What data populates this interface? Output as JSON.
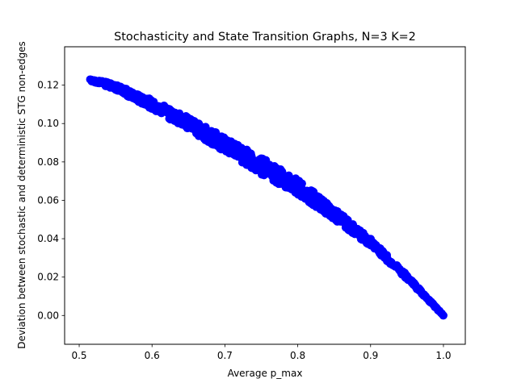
{
  "chart_data": {
    "type": "scatter",
    "title": "Stochasticity and State Transition Graphs, N=3 K=2",
    "xlabel": "Average p_max",
    "ylabel": "Deviation between stochastic and deterministic STG non-edges",
    "xlim": [
      0.48,
      1.03
    ],
    "ylim": [
      -0.015,
      0.14
    ],
    "xticks": [
      0.5,
      0.6,
      0.7,
      0.8,
      0.9,
      1.0
    ],
    "xtick_labels": [
      "0.5",
      "0.6",
      "0.7",
      "0.8",
      "0.9",
      "1.0"
    ],
    "yticks": [
      0.0,
      0.02,
      0.04,
      0.06,
      0.08,
      0.1,
      0.12
    ],
    "ytick_labels": [
      "0.00",
      "0.02",
      "0.04",
      "0.06",
      "0.08",
      "0.10",
      "0.12"
    ],
    "grid": false,
    "marker_color": "#0000ff",
    "series": [
      {
        "band_center": [
          [
            0.515,
            0.123
          ],
          [
            0.55,
            0.119
          ],
          [
            0.6,
            0.11
          ],
          [
            0.65,
            0.1
          ],
          [
            0.7,
            0.089
          ],
          [
            0.75,
            0.078
          ],
          [
            0.8,
            0.067
          ],
          [
            0.85,
            0.053
          ],
          [
            0.9,
            0.038
          ],
          [
            0.95,
            0.02
          ],
          [
            1.0,
            0.0
          ]
        ],
        "band_spread": [
          [
            0.515,
            0.0008
          ],
          [
            0.6,
            0.0025
          ],
          [
            0.7,
            0.004
          ],
          [
            0.75,
            0.0045
          ],
          [
            0.8,
            0.004
          ],
          [
            0.9,
            0.002
          ],
          [
            1.0,
            0.0002
          ]
        ],
        "x_range": [
          0.515,
          1.0
        ]
      }
    ]
  }
}
